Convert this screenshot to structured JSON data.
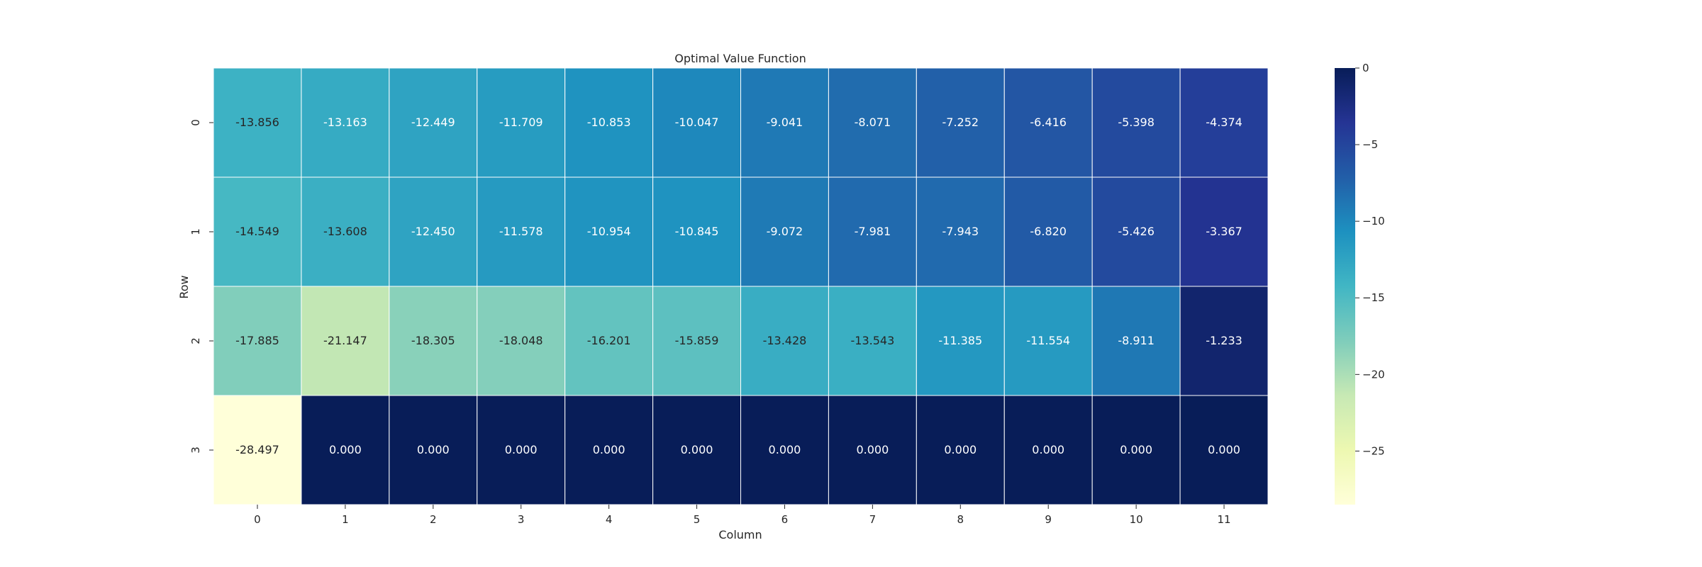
{
  "chart_data": {
    "type": "heatmap",
    "title": "Optimal Value Function",
    "xlabel": "Column",
    "ylabel": "Row",
    "x_ticks": [
      "0",
      "1",
      "2",
      "3",
      "4",
      "5",
      "6",
      "7",
      "8",
      "9",
      "10",
      "11"
    ],
    "y_ticks": [
      "0",
      "1",
      "2",
      "3"
    ],
    "values": [
      [
        -13.856,
        -13.163,
        -12.449,
        -11.709,
        -10.853,
        -10.047,
        -9.041,
        -8.071,
        -7.252,
        -6.416,
        -5.398,
        -4.374
      ],
      [
        -14.549,
        -13.608,
        -12.45,
        -11.578,
        -10.954,
        -10.845,
        -9.072,
        -7.981,
        -7.943,
        -6.82,
        -5.426,
        -3.367
      ],
      [
        -17.885,
        -21.147,
        -18.305,
        -18.048,
        -16.201,
        -15.859,
        -13.428,
        -13.543,
        -11.385,
        -11.554,
        -8.911,
        -1.233
      ],
      [
        -28.497,
        0.0,
        0.0,
        0.0,
        0.0,
        0.0,
        0.0,
        0.0,
        0.0,
        0.0,
        0.0,
        0.0
      ]
    ],
    "annotation_format": "0.000",
    "colormap": "YlGnBu",
    "vmin": -28.497,
    "vmax": 0,
    "colorbar_ticks": [
      0,
      -5,
      -10,
      -15,
      -20,
      -25
    ],
    "colorbar_tick_labels": [
      "0",
      "−5",
      "−10",
      "−15",
      "−20",
      "−25"
    ],
    "grid": true,
    "cell_border_color": "#ffffff",
    "annotation_dark_text_color": "#262626",
    "annotation_light_text_color": "#ffffff"
  }
}
